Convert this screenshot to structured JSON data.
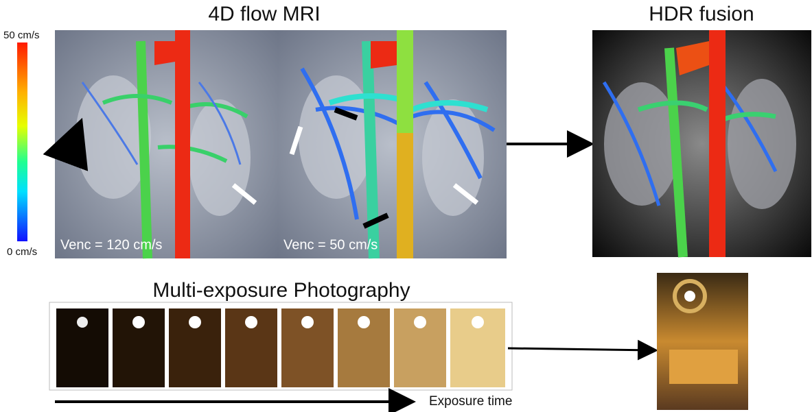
{
  "header": {
    "mri_title": "4D flow MRI",
    "hdr_title": "HDR fusion"
  },
  "colorbar": {
    "max_label": "50 cm/s",
    "min_label": "0 cm/s"
  },
  "panels": {
    "venc_high": "Venc = 120 cm/s",
    "venc_low": "Venc = 50 cm/s"
  },
  "photography": {
    "title": "Multi-exposure Photography",
    "axis_label": "Exposure time"
  }
}
